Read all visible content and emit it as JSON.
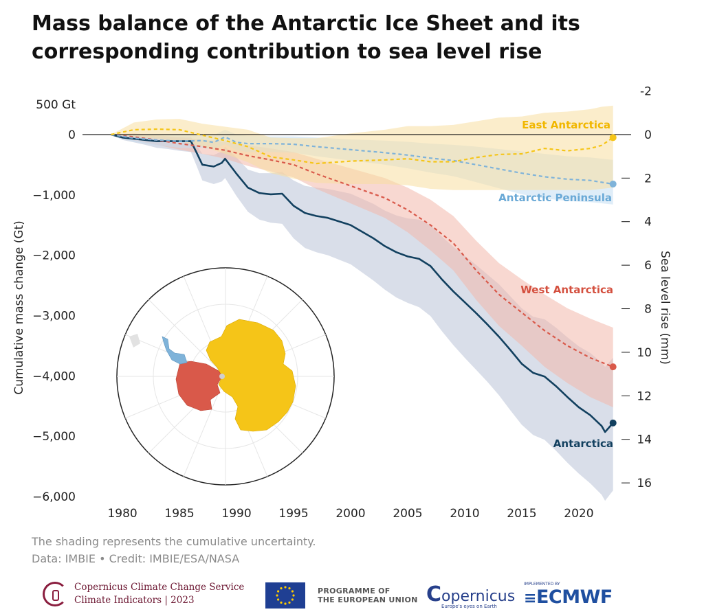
{
  "title_line1": "Mass balance of the Antarctic Ice Sheet and its",
  "title_line2": "corresponding contribution to sea level rise",
  "caption_line1": "The shading represents the cumulative uncertainty.",
  "caption_line2": "Data: IMBIE • Credit: IMBIE/ESA/NASA",
  "footer": {
    "c3s_line1": "Copernicus Climate Change Service",
    "c3s_line2": "Climate Indicators | 2023",
    "eu_line1": "PROGRAMME OF",
    "eu_line2": "THE EUROPEAN UNION",
    "copernicus": "opernicus",
    "copernicus_tagline": "Europe's eyes on Earth",
    "ecmwf_small": "IMPLEMENTED BY",
    "ecmwf": "ECMWF"
  },
  "chart_data": {
    "type": "line",
    "ylabel": "Cumulative mass change (Gt)",
    "y2label": "Sea level rise (mm)",
    "ylim": [
      -6000,
      500
    ],
    "xlim": [
      1976.5,
      2023.5
    ],
    "y2lim": [
      -2,
      16
    ],
    "xticks": [
      1980,
      1985,
      1990,
      1995,
      2000,
      2005,
      2010,
      2015,
      2020
    ],
    "yticks": [
      500,
      0,
      -1000,
      -2000,
      -3000,
      -4000,
      -5000,
      -6000
    ],
    "ytick_labels": [
      "500 Gt",
      "0",
      "−1,000",
      "−2,000",
      "−3,000",
      "−4,000",
      "−5,000",
      "−6,000"
    ],
    "y2ticks": [
      -2,
      0,
      2,
      4,
      6,
      8,
      10,
      12,
      14,
      16
    ],
    "y2tick_labels": [
      "-2",
      "0",
      "2",
      "4",
      "6",
      "8",
      "10",
      "12",
      "14",
      "16"
    ],
    "series": [
      {
        "name": "East Antarctica",
        "color": "#f5c518",
        "band_color": "#f7dea0",
        "style": "dashed",
        "label_color": "#f1b700",
        "x": [
          1979,
          1981,
          1983,
          1985,
          1987,
          1989,
          1991,
          1993,
          1995,
          1997,
          2000,
          2003,
          2005,
          2007,
          2009,
          2011,
          2013,
          2015,
          2017,
          2019,
          2021,
          2022,
          2023
        ],
        "y": [
          0,
          80,
          90,
          80,
          -10,
          -100,
          -200,
          -370,
          -420,
          -480,
          -440,
          -420,
          -400,
          -450,
          -450,
          -380,
          -330,
          -320,
          -230,
          -270,
          -230,
          -180,
          -50
        ],
        "upper": [
          0,
          200,
          250,
          260,
          180,
          130,
          80,
          -50,
          -60,
          -60,
          20,
          80,
          140,
          140,
          160,
          220,
          280,
          300,
          360,
          380,
          420,
          460,
          480
        ],
        "lower": [
          0,
          -40,
          -70,
          -110,
          -200,
          -320,
          -460,
          -640,
          -730,
          -800,
          -820,
          -820,
          -840,
          -900,
          -920,
          -920,
          -920,
          -920,
          -920,
          -920,
          -920,
          -900,
          -880
        ]
      },
      {
        "name": "Antarctic Peninsula",
        "color": "#7fb3d9",
        "band_color": "#c5def2",
        "style": "dashed",
        "label_color": "#6aa9d6",
        "x": [
          1979,
          1981,
          1983,
          1985,
          1987,
          1988,
          1989,
          1990,
          1991,
          1993,
          1995,
          1997,
          2000,
          2003,
          2005,
          2007,
          2009,
          2011,
          2013,
          2015,
          2017,
          2019,
          2021,
          2023
        ],
        "y": [
          0,
          -60,
          -90,
          -110,
          -100,
          -130,
          -40,
          -130,
          -150,
          -150,
          -160,
          -200,
          -250,
          -300,
          -340,
          -390,
          -430,
          -500,
          -570,
          -640,
          -700,
          -740,
          -760,
          -820
        ],
        "upper": [
          0,
          0,
          0,
          0,
          10,
          -10,
          80,
          0,
          -20,
          -30,
          -30,
          -50,
          -80,
          -100,
          -120,
          -150,
          -170,
          -200,
          -240,
          -280,
          -320,
          -360,
          -380,
          -420
        ],
        "lower": [
          0,
          -120,
          -180,
          -220,
          -220,
          -250,
          -160,
          -260,
          -290,
          -290,
          -300,
          -360,
          -430,
          -500,
          -560,
          -630,
          -690,
          -790,
          -890,
          -990,
          -1060,
          -1100,
          -1120,
          -1160
        ]
      },
      {
        "name": "West Antarctica",
        "color": "#d9594a",
        "band_color": "#f2b8ab",
        "style": "dashed",
        "label_color": "#d4503f",
        "x": [
          1979,
          1981,
          1983,
          1985,
          1987,
          1989,
          1991,
          1993,
          1995,
          1997,
          2000,
          2003,
          2005,
          2007,
          2009,
          2011,
          2013,
          2015,
          2017,
          2019,
          2021,
          2023
        ],
        "y": [
          0,
          -40,
          -90,
          -150,
          -200,
          -260,
          -350,
          -420,
          -500,
          -650,
          -850,
          -1050,
          -1250,
          -1500,
          -1800,
          -2250,
          -2650,
          -2950,
          -3250,
          -3500,
          -3700,
          -3850
        ],
        "upper": [
          0,
          20,
          -10,
          -50,
          -80,
          -120,
          -180,
          -230,
          -290,
          -400,
          -560,
          -720,
          -880,
          -1080,
          -1350,
          -1760,
          -2130,
          -2400,
          -2650,
          -2880,
          -3050,
          -3200
        ],
        "lower": [
          0,
          -100,
          -170,
          -250,
          -320,
          -400,
          -520,
          -610,
          -710,
          -900,
          -1140,
          -1380,
          -1620,
          -1920,
          -2250,
          -2740,
          -3170,
          -3500,
          -3850,
          -4120,
          -4350,
          -4520
        ]
      },
      {
        "name": "Antarctica",
        "color": "#12405f",
        "band_color": "#ccd3e2",
        "style": "solid",
        "label_color": "#12405f",
        "x": [
          1979,
          1980,
          1981,
          1982,
          1983,
          1984,
          1985,
          1986,
          1986.5,
          1987,
          1988,
          1988.7,
          1989,
          1990,
          1991,
          1992,
          1993,
          1994,
          1995,
          1996,
          1997,
          1998,
          2000,
          2002,
          2003,
          2004,
          2005,
          2006,
          2007,
          2008,
          2009,
          2010,
          2011,
          2012,
          2013,
          2014,
          2015,
          2016,
          2017,
          2018,
          2019,
          2020,
          2021,
          2022,
          2022.3,
          2023
        ],
        "y": [
          0,
          -50,
          -70,
          -90,
          -110,
          -110,
          -110,
          -110,
          -300,
          -500,
          -530,
          -470,
          -400,
          -650,
          -880,
          -970,
          -990,
          -980,
          -1180,
          -1300,
          -1350,
          -1380,
          -1500,
          -1720,
          -1850,
          -1950,
          -2020,
          -2060,
          -2180,
          -2400,
          -2600,
          -2780,
          -2960,
          -3150,
          -3350,
          -3570,
          -3800,
          -3950,
          -4010,
          -4170,
          -4350,
          -4520,
          -4650,
          -4830,
          -4930,
          -4780
        ],
        "upper": [
          0,
          -10,
          -20,
          -30,
          -40,
          -40,
          -40,
          -40,
          -180,
          -320,
          -340,
          -280,
          -200,
          -380,
          -580,
          -640,
          -640,
          -620,
          -760,
          -850,
          -880,
          -900,
          -980,
          -1150,
          -1260,
          -1340,
          -1390,
          -1410,
          -1500,
          -1690,
          -1860,
          -2010,
          -2160,
          -2320,
          -2480,
          -2680,
          -2880,
          -3020,
          -3060,
          -3200,
          -3360,
          -3510,
          -3620,
          -3780,
          -3850,
          -3700
        ],
        "lower": [
          0,
          -90,
          -130,
          -170,
          -220,
          -240,
          -270,
          -290,
          -520,
          -760,
          -820,
          -780,
          -720,
          -1020,
          -1280,
          -1410,
          -1460,
          -1480,
          -1720,
          -1880,
          -1950,
          -2000,
          -2150,
          -2420,
          -2570,
          -2700,
          -2790,
          -2860,
          -3010,
          -3260,
          -3490,
          -3700,
          -3900,
          -4100,
          -4320,
          -4570,
          -4810,
          -4980,
          -5060,
          -5240,
          -5440,
          -5620,
          -5780,
          -5970,
          -6070,
          -5900
        ]
      }
    ]
  }
}
